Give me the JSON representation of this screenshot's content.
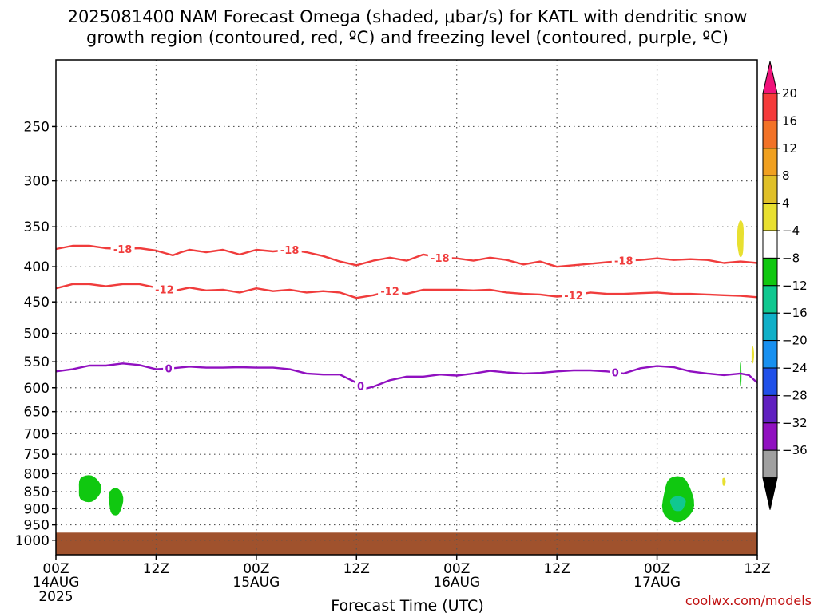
{
  "title": {
    "line1": "2025081400 NAM Forecast Omega (shaded, μbar/s) for KATL with dendritic snow",
    "line2": "growth region (contoured, red, ºC) and freezing level (contoured, purple, ºC)"
  },
  "credit": "coolwx.com/models",
  "chart_data": {
    "type": "heatmap",
    "xlabel": "Forecast Time (UTC)",
    "x_ticks": [
      {
        "hour": 0,
        "label": "00Z",
        "date": "14AUG",
        "year": "2025"
      },
      {
        "hour": 12,
        "label": "12Z"
      },
      {
        "hour": 24,
        "label": "00Z",
        "date": "15AUG"
      },
      {
        "hour": 36,
        "label": "12Z"
      },
      {
        "hour": 48,
        "label": "00Z",
        "date": "16AUG"
      },
      {
        "hour": 60,
        "label": "12Z"
      },
      {
        "hour": 72,
        "label": "00Z",
        "date": "17AUG"
      },
      {
        "hour": 84,
        "label": "12Z"
      }
    ],
    "x_range_hours": [
      0,
      84
    ],
    "y_axis": {
      "scale": "log-pressure",
      "inverted": true,
      "range_hpa": [
        200,
        1050
      ],
      "ticks": [
        250,
        300,
        350,
        400,
        450,
        500,
        550,
        600,
        650,
        700,
        750,
        800,
        850,
        900,
        950,
        1000
      ]
    },
    "grid": true,
    "colorbar": {
      "units": "μbar/s",
      "labels": [
        "20",
        "16",
        "12",
        "8",
        "4",
        "−4",
        "−8",
        "−12",
        "−16",
        "−20",
        "−24",
        "−28",
        "−32",
        "−36"
      ],
      "colors": [
        "#f0127a",
        "#f53a3a",
        "#f27227",
        "#f0a020",
        "#e0c028",
        "#e8e030",
        "#ffffff",
        "#10c810",
        "#10c890",
        "#10b0c8",
        "#1890f0",
        "#2050e8",
        "#6020c0",
        "#9010c0",
        "#a0a0a0",
        "#000000"
      ]
    },
    "contours": [
      {
        "label": "-18",
        "color": "#f03c3c",
        "label_hours": [
          8,
          28,
          46,
          68
        ],
        "points": [
          [
            0,
            377
          ],
          [
            2,
            373
          ],
          [
            4,
            373
          ],
          [
            6,
            376
          ],
          [
            8,
            377
          ],
          [
            10,
            376
          ],
          [
            12,
            379
          ],
          [
            14,
            385
          ],
          [
            15,
            381
          ],
          [
            16,
            378
          ],
          [
            18,
            381
          ],
          [
            20,
            378
          ],
          [
            22,
            384
          ],
          [
            24,
            378
          ],
          [
            26,
            380
          ],
          [
            28,
            378
          ],
          [
            30,
            381
          ],
          [
            32,
            386
          ],
          [
            34,
            393
          ],
          [
            36,
            398
          ],
          [
            38,
            392
          ],
          [
            40,
            388
          ],
          [
            42,
            392
          ],
          [
            44,
            384
          ],
          [
            46,
            388
          ],
          [
            48,
            389
          ],
          [
            50,
            392
          ],
          [
            52,
            388
          ],
          [
            54,
            391
          ],
          [
            56,
            397
          ],
          [
            58,
            393
          ],
          [
            60,
            400
          ],
          [
            62,
            398
          ],
          [
            64,
            396
          ],
          [
            66,
            394
          ],
          [
            68,
            392
          ],
          [
            70,
            391
          ],
          [
            72,
            389
          ],
          [
            74,
            391
          ],
          [
            76,
            390
          ],
          [
            78,
            391
          ],
          [
            80,
            395
          ],
          [
            82,
            393
          ],
          [
            84,
            395
          ]
        ]
      },
      {
        "label": "-12",
        "color": "#f03c3c",
        "label_hours": [
          13,
          40,
          62
        ],
        "points": [
          [
            0,
            430
          ],
          [
            2,
            424
          ],
          [
            4,
            424
          ],
          [
            6,
            427
          ],
          [
            8,
            424
          ],
          [
            10,
            424
          ],
          [
            12,
            429
          ],
          [
            14,
            434
          ],
          [
            16,
            429
          ],
          [
            18,
            433
          ],
          [
            20,
            432
          ],
          [
            22,
            436
          ],
          [
            24,
            430
          ],
          [
            26,
            434
          ],
          [
            28,
            432
          ],
          [
            30,
            436
          ],
          [
            32,
            434
          ],
          [
            34,
            436
          ],
          [
            36,
            444
          ],
          [
            38,
            440
          ],
          [
            40,
            434
          ],
          [
            42,
            438
          ],
          [
            44,
            432
          ],
          [
            46,
            432
          ],
          [
            48,
            432
          ],
          [
            50,
            433
          ],
          [
            52,
            432
          ],
          [
            54,
            436
          ],
          [
            56,
            438
          ],
          [
            58,
            439
          ],
          [
            60,
            442
          ],
          [
            62,
            440
          ],
          [
            64,
            436
          ],
          [
            66,
            438
          ],
          [
            68,
            438
          ],
          [
            70,
            437
          ],
          [
            72,
            436
          ],
          [
            74,
            438
          ],
          [
            76,
            438
          ],
          [
            78,
            439
          ],
          [
            80,
            440
          ],
          [
            82,
            441
          ],
          [
            84,
            443
          ]
        ]
      },
      {
        "label": "0",
        "color": "#9010c0",
        "label_hours": [
          13.5,
          36.5,
          67
        ],
        "points": [
          [
            0,
            568
          ],
          [
            2,
            564
          ],
          [
            4,
            557
          ],
          [
            6,
            557
          ],
          [
            8,
            553
          ],
          [
            10,
            556
          ],
          [
            12,
            564
          ],
          [
            14,
            562
          ],
          [
            16,
            559
          ],
          [
            18,
            561
          ],
          [
            20,
            561
          ],
          [
            22,
            560
          ],
          [
            24,
            561
          ],
          [
            26,
            561
          ],
          [
            28,
            564
          ],
          [
            30,
            572
          ],
          [
            32,
            574
          ],
          [
            34,
            574
          ],
          [
            36,
            590
          ],
          [
            37,
            602
          ],
          [
            38,
            598
          ],
          [
            40,
            585
          ],
          [
            42,
            578
          ],
          [
            44,
            578
          ],
          [
            46,
            574
          ],
          [
            48,
            576
          ],
          [
            50,
            572
          ],
          [
            52,
            567
          ],
          [
            54,
            570
          ],
          [
            56,
            572
          ],
          [
            58,
            571
          ],
          [
            60,
            568
          ],
          [
            62,
            566
          ],
          [
            64,
            566
          ],
          [
            66,
            568
          ],
          [
            68,
            572
          ],
          [
            70,
            562
          ],
          [
            72,
            558
          ],
          [
            74,
            560
          ],
          [
            76,
            568
          ],
          [
            78,
            572
          ],
          [
            80,
            575
          ],
          [
            82,
            572
          ],
          [
            83,
            575
          ],
          [
            84,
            590
          ]
        ]
      }
    ],
    "omega_regions": [
      {
        "value_range": "-4 to -8",
        "color": "#10c810",
        "hours": [
          2.6,
          5.3
        ],
        "p_hpa": [
          800,
          885
        ]
      },
      {
        "value_range": "-4 to -8",
        "color": "#10c810",
        "hours": [
          6.3,
          8.0
        ],
        "p_hpa": [
          835,
          925
        ]
      },
      {
        "value_range": "-4 to -8",
        "color": "#10c810",
        "hours": [
          72.6,
          76.3
        ],
        "p_hpa": [
          800,
          950
        ]
      },
      {
        "value_range": "-8 to -12",
        "color": "#10c890",
        "hours": [
          73.6,
          75.4
        ],
        "p_hpa": [
          860,
          910
        ]
      },
      {
        "value_range": "4 to 8",
        "color": "#e8e030",
        "hours": [
          81.6,
          82.4
        ],
        "p_hpa": [
          340,
          390
        ]
      },
      {
        "value_range": "4 to 8",
        "color": "#e8e030",
        "hours": [
          83.3,
          83.6
        ],
        "p_hpa": [
          520,
          555
        ]
      },
      {
        "value_range": "4 to 8",
        "color": "#e8e030",
        "hours": [
          79.8,
          80.2
        ],
        "p_hpa": [
          810,
          835
        ]
      },
      {
        "value_range": "-4 to -8",
        "color": "#10c810",
        "hours": [
          81.9,
          82.1
        ],
        "p_hpa": [
          548,
          600
        ]
      }
    ],
    "terrain": {
      "color": "#a0522d",
      "p_top_hpa": 975
    }
  }
}
